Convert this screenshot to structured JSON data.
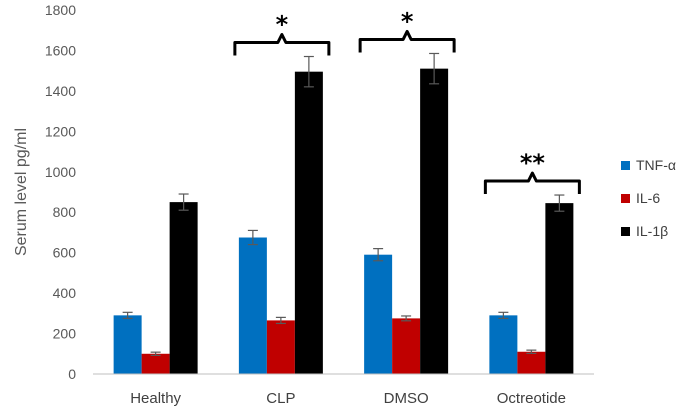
{
  "chart_data": {
    "type": "bar",
    "ylabel": "Serum level pg/ml",
    "ylim": [
      0,
      1800
    ],
    "yticks": [
      0,
      200,
      400,
      600,
      800,
      1000,
      1200,
      1400,
      1600,
      1800
    ],
    "categories": [
      "Healthy",
      "CLP",
      "DMSO",
      "Octreotide"
    ],
    "series": [
      {
        "name": "TNF-α",
        "color": "#0070C0",
        "values": [
          290,
          675,
          590,
          290
        ],
        "errors": [
          15,
          35,
          30,
          15
        ]
      },
      {
        "name": "IL-6",
        "color": "#C00000",
        "values": [
          100,
          265,
          275,
          110
        ],
        "errors": [
          8,
          15,
          12,
          8
        ]
      },
      {
        "name": "IL-1β",
        "color": "#000000",
        "values": [
          850,
          1495,
          1510,
          845
        ],
        "errors": [
          40,
          75,
          75,
          40
        ]
      }
    ],
    "grid": false,
    "legend_position": "right",
    "annotations": [
      {
        "category": "CLP",
        "label": "*"
      },
      {
        "category": "DMSO",
        "label": "*"
      },
      {
        "category": "Octreotide",
        "label": "**"
      }
    ]
  }
}
